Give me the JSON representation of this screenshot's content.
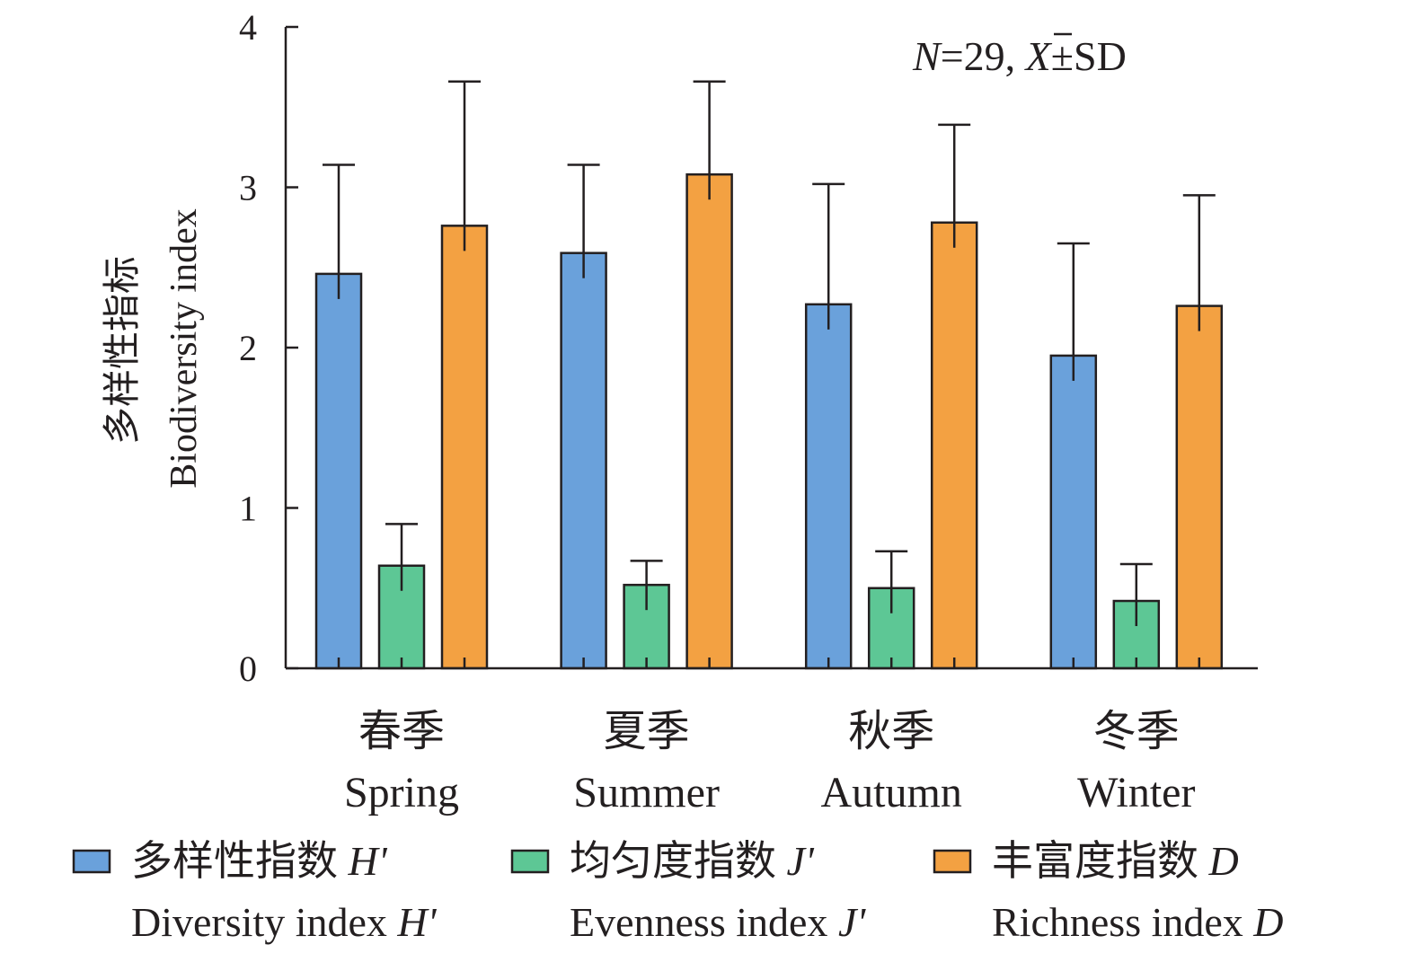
{
  "chart_data": {
    "type": "bar",
    "title": "",
    "ylabel_cn": "多样性指标",
    "ylabel_en": "Biodiversity index",
    "ylim": [
      0,
      4
    ],
    "yticks": [
      "0",
      "1",
      "2",
      "3",
      "4"
    ],
    "categories": [
      {
        "cn": "春季",
        "en": "Spring"
      },
      {
        "cn": "夏季",
        "en": "Summer"
      },
      {
        "cn": "秋季",
        "en": "Autumn"
      },
      {
        "cn": "冬季",
        "en": "Winter"
      }
    ],
    "series": [
      {
        "name_cn": "多样性指数",
        "name_en": "Diversity index",
        "symbol": "H'",
        "color": "#6aa1db",
        "values": [
          2.46,
          2.59,
          2.27,
          1.95
        ],
        "sd": [
          0.68,
          0.55,
          0.75,
          0.7
        ]
      },
      {
        "name_cn": "均匀度指数",
        "name_en": "Evenness index",
        "symbol": "J'",
        "color": "#5dc795",
        "values": [
          0.64,
          0.52,
          0.5,
          0.42
        ],
        "sd": [
          0.26,
          0.15,
          0.23,
          0.23
        ]
      },
      {
        "name_cn": "丰富度指数",
        "name_en": "Richness index",
        "symbol": "D",
        "color": "#f3a142",
        "values": [
          2.76,
          3.08,
          2.78,
          2.26
        ],
        "sd": [
          0.9,
          0.58,
          0.61,
          0.69
        ]
      }
    ],
    "annotation": {
      "n_label": "N",
      "n_value": "=29, ",
      "x_label": "X",
      "pm_sd": "±SD"
    },
    "legend_position": "bottom"
  }
}
